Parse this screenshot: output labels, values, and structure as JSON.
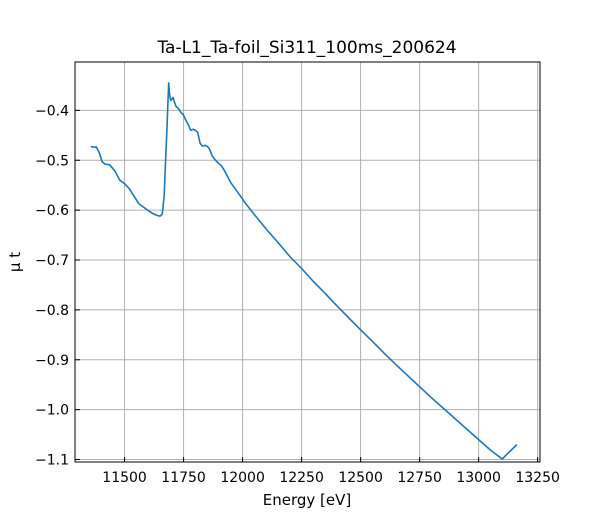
{
  "chart_data": {
    "type": "line",
    "title": "Ta-L1_Ta-foil_Si311_100ms_200624",
    "xlabel": "Energy [eV]",
    "ylabel": "μ t",
    "xlim": [
      11290,
      13260
    ],
    "ylim": [
      -1.105,
      -0.303
    ],
    "xticks": [
      11500,
      11750,
      12000,
      12250,
      12500,
      12750,
      13000,
      13250
    ],
    "xtick_labels": [
      "11500",
      "11750",
      "12000",
      "12250",
      "12500",
      "12750",
      "13000",
      "13250"
    ],
    "yticks": [
      -1.1,
      -1.0,
      -0.9,
      -0.8,
      -0.7,
      -0.6,
      -0.5,
      -0.4
    ],
    "ytick_labels": [
      "−1.1",
      "−1.0",
      "−0.9",
      "−0.8",
      "−0.7",
      "−0.6",
      "−0.5",
      "−0.4"
    ],
    "grid": true,
    "line_color": "#1f77b4",
    "series": [
      {
        "x": [
          11360,
          11376,
          11380,
          11393,
          11405,
          11418,
          11436,
          11460,
          11480,
          11500,
          11520,
          11540,
          11560,
          11580,
          11600,
          11620,
          11640,
          11650,
          11660,
          11668,
          11674,
          11680,
          11684,
          11687,
          11690,
          11693,
          11696,
          11700,
          11705,
          11712,
          11718,
          11725,
          11733,
          11740,
          11748,
          11756,
          11764,
          11772,
          11780,
          11790,
          11800,
          11810,
          11820,
          11830,
          11840,
          11850,
          11857,
          11864,
          11870,
          11880,
          11890,
          11900,
          11910,
          11920,
          11930,
          11950,
          11970,
          11990,
          12010,
          12050,
          12100,
          12150,
          12200,
          12250,
          12300,
          12350,
          12400,
          12450,
          12500,
          12550,
          12600,
          12650,
          12700,
          12750,
          12800,
          12850,
          12900,
          12950,
          13000,
          13050,
          13100,
          13160
        ],
        "y": [
          -0.473,
          -0.474,
          -0.473,
          -0.485,
          -0.503,
          -0.508,
          -0.509,
          -0.522,
          -0.54,
          -0.547,
          -0.557,
          -0.572,
          -0.587,
          -0.594,
          -0.601,
          -0.607,
          -0.611,
          -0.612,
          -0.608,
          -0.57,
          -0.5,
          -0.43,
          -0.38,
          -0.345,
          -0.365,
          -0.375,
          -0.38,
          -0.378,
          -0.374,
          -0.384,
          -0.392,
          -0.395,
          -0.4,
          -0.405,
          -0.408,
          -0.416,
          -0.424,
          -0.431,
          -0.44,
          -0.438,
          -0.44,
          -0.444,
          -0.466,
          -0.472,
          -0.47,
          -0.472,
          -0.475,
          -0.482,
          -0.49,
          -0.497,
          -0.502,
          -0.507,
          -0.511,
          -0.518,
          -0.527,
          -0.545,
          -0.558,
          -0.571,
          -0.585,
          -0.609,
          -0.638,
          -0.665,
          -0.693,
          -0.717,
          -0.743,
          -0.767,
          -0.792,
          -0.816,
          -0.84,
          -0.863,
          -0.887,
          -0.91,
          -0.932,
          -0.954,
          -0.976,
          -0.997,
          -1.018,
          -1.039,
          -1.06,
          -1.081,
          -1.099,
          -1.071
        ]
      }
    ]
  }
}
